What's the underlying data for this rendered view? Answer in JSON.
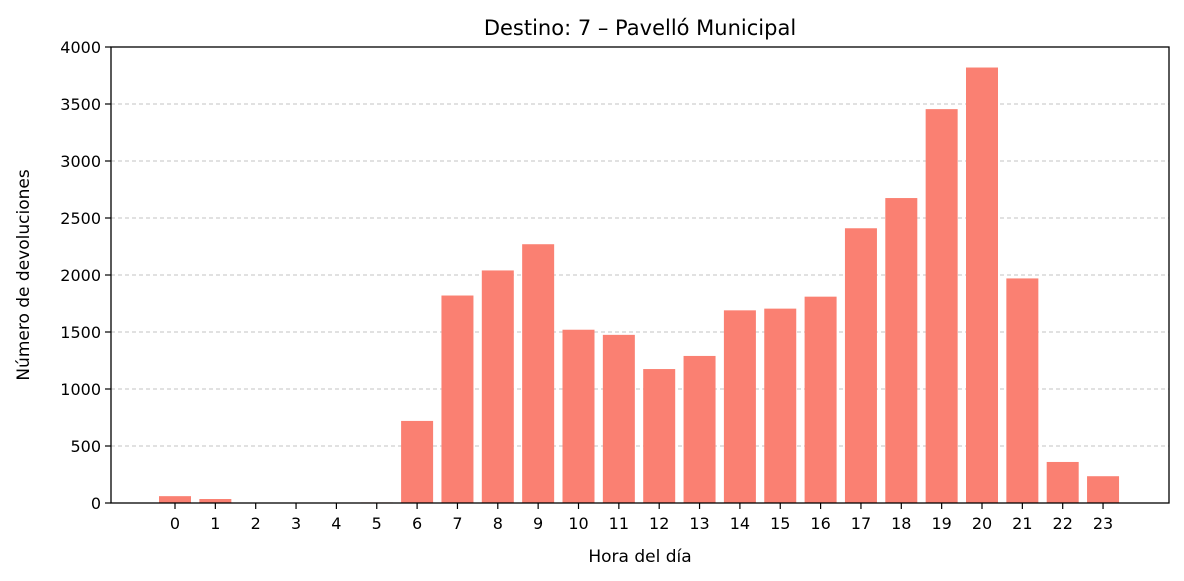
{
  "chart_data": {
    "type": "bar",
    "title": "Destino: 7 – Pavelló Municipal",
    "xlabel": "Hora del día",
    "ylabel": "Número de devoluciones",
    "categories": [
      "0",
      "1",
      "2",
      "3",
      "4",
      "5",
      "6",
      "7",
      "8",
      "9",
      "10",
      "11",
      "12",
      "13",
      "14",
      "15",
      "16",
      "17",
      "18",
      "19",
      "20",
      "21",
      "22",
      "23"
    ],
    "values": [
      60,
      35,
      3,
      2,
      2,
      5,
      720,
      1820,
      2040,
      2270,
      1520,
      1475,
      1175,
      1290,
      1690,
      1705,
      1810,
      2410,
      2675,
      3455,
      3820,
      1970,
      360,
      235
    ],
    "ylim": [
      0,
      4000
    ],
    "yticks": [
      0,
      500,
      1000,
      1500,
      2000,
      2500,
      3000,
      3500,
      4000
    ],
    "grid": "y-dashed",
    "bar_color": "#fa8072"
  }
}
